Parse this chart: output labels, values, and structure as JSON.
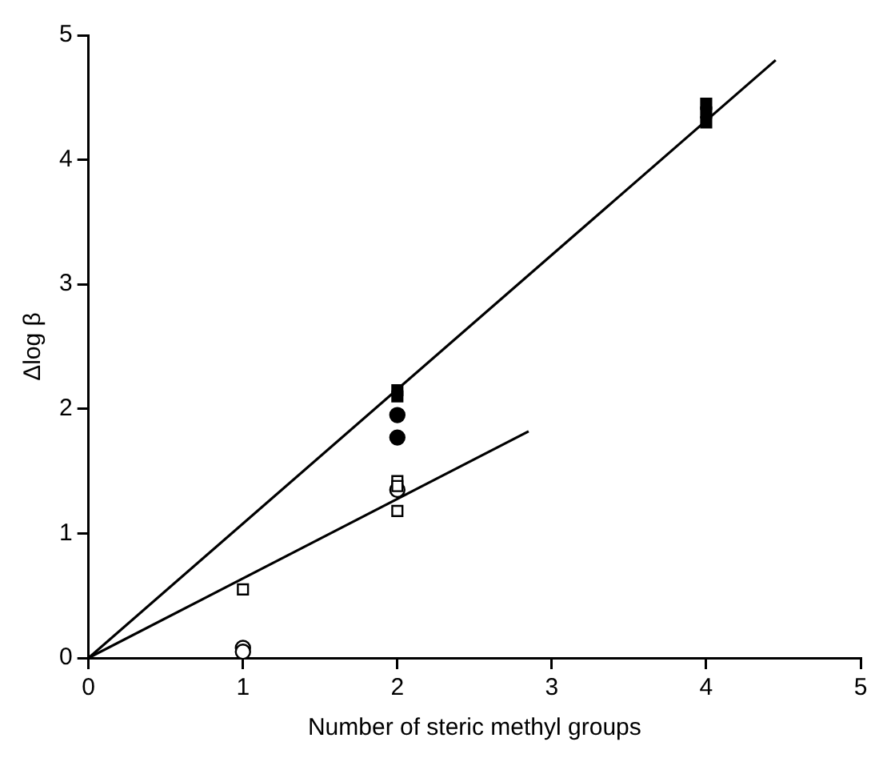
{
  "chart_data": {
    "type": "scatter",
    "xlabel": "Number of steric methyl groups",
    "ylabel": "Δlog β",
    "xlim": [
      0,
      5
    ],
    "xticks": [
      0,
      1,
      2,
      3,
      4,
      5
    ],
    "ylim": [
      0,
      5
    ],
    "yticks": [
      0,
      1,
      2,
      3,
      4,
      5
    ],
    "grid": false,
    "legend": false,
    "series": [
      {
        "marker": "circle",
        "color": "#000000",
        "x": [
          2,
          2
        ],
        "values": [
          1.95,
          1.77
        ]
      },
      {
        "marker": "square",
        "color": "#000000",
        "x": [
          2,
          2,
          4,
          4,
          4
        ],
        "values": [
          2.15,
          2.1,
          4.45,
          4.38,
          4.3
        ]
      },
      {
        "marker": "square",
        "color": "#000000",
        "x": [
          1,
          2,
          2,
          2
        ],
        "values": [
          0.55,
          1.42,
          1.38,
          1.18
        ]
      },
      {
        "marker": "circle",
        "color": "#000000",
        "x": [
          1,
          1,
          2
        ],
        "values": [
          0.08,
          0.05,
          1.35
        ]
      },
      {
        "type": "line",
        "marker": "none",
        "color": "#000000",
        "x": [
          0,
          4.45
        ],
        "values": [
          0,
          4.8
        ]
      },
      {
        "type": "line",
        "marker": "none",
        "color": "#000000",
        "x": [
          0,
          2.85
        ],
        "values": [
          0,
          1.82
        ]
      }
    ]
  }
}
